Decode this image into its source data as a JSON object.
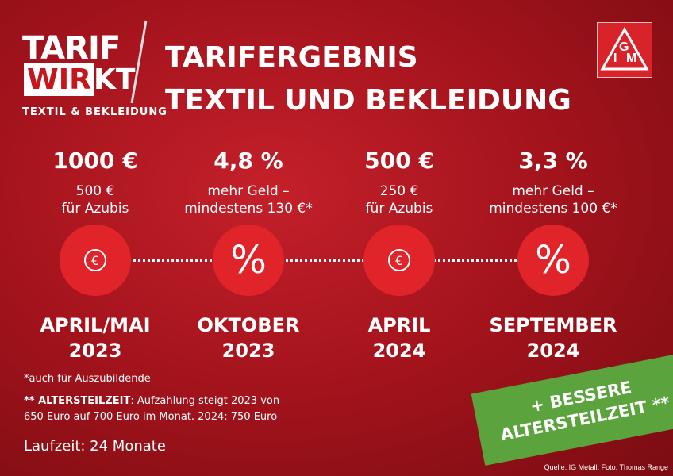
{
  "logo": {
    "line1": "TARIF",
    "line2a": "WIR",
    "line2b": "KT",
    "subtitle": "TEXTIL & BEKLEIDUNG"
  },
  "brand": {
    "letters": [
      "I",
      "G",
      "M"
    ]
  },
  "header": {
    "title_line1": "TARIFERGEBNIS",
    "title_line2": "TEXTIL UND BEKLEIDUNG"
  },
  "steps": [
    {
      "amount": "1000 €",
      "detail1": "500 €",
      "detail2": "für Azubis",
      "icon": "€",
      "date1": "APRIL/MAI",
      "date2": "2023"
    },
    {
      "amount": "4,8 %",
      "detail1": "mehr Geld –",
      "detail2": "mindestens 130 €*",
      "icon": "%",
      "date1": "OKTOBER",
      "date2": "2023"
    },
    {
      "amount": "500 €",
      "detail1": "250 €",
      "detail2": "für Azubis",
      "icon": "€",
      "date1": "APRIL",
      "date2": "2024"
    },
    {
      "amount": "3,3 %",
      "detail1": "mehr Geld –",
      "detail2": "mindestens 100 €*",
      "icon": "%",
      "date1": "SEPTEMBER",
      "date2": "2024"
    }
  ],
  "footnotes": {
    "note1": "*auch für Auszubildende",
    "note2_label": "** ALTERSTEILZEIT",
    "note2_text": ": Aufzahlung steigt 2023 von",
    "note2_line2": "650 Euro auf 700 Euro im Monat. 2024: 750 Euro",
    "runtime": "Laufzeit: 24 Monate"
  },
  "badge": {
    "line1": "+ BESSERE",
    "line2": "ALTERSTEILZEIT **"
  },
  "credit": "Quelle: IG Metall; Foto: Thomas Range"
}
